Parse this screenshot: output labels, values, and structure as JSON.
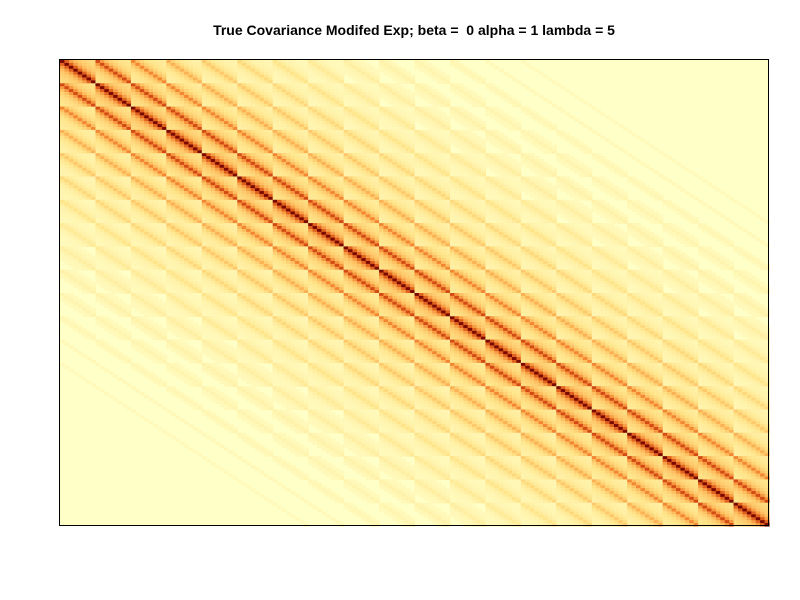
{
  "chart_data": {
    "type": "heatmap",
    "title": "True Covariance Modifed Exp; beta =  0 alpha = 1 lambda = 5",
    "xlabel": "",
    "ylabel": "",
    "colormap": [
      "#ffffc8",
      "#ffe48a",
      "#fdbb5c",
      "#f07a2a",
      "#c83a0c",
      "#7a0a00"
    ],
    "grid": false,
    "legend": "none",
    "matrix": {
      "rows": 20,
      "cols": 20,
      "description_of_structure": "block-banded covariance",
      "beta": 0,
      "alpha": 1,
      "lambda": 5
    }
  }
}
